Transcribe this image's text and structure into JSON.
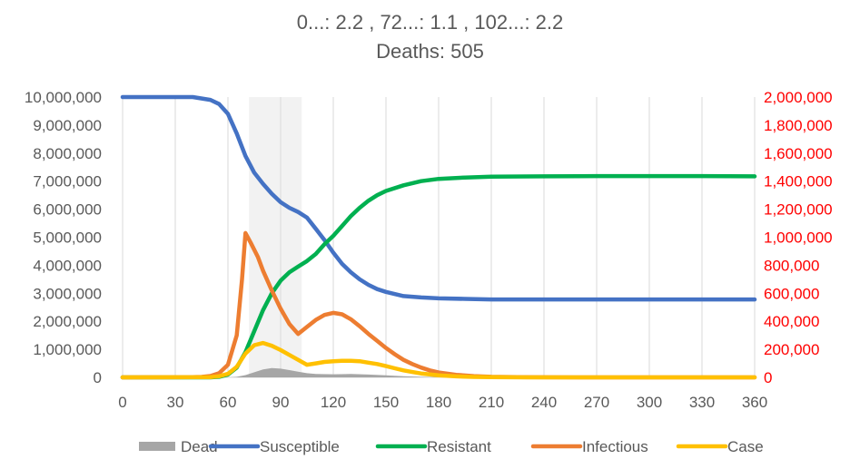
{
  "title_line1": "0...: 2.2 ,  72...: 1.1 ,  102...: 2.2",
  "title_line2": "Deaths: 505",
  "colors": {
    "dead": "#a6a6a6",
    "susceptible": "#4472c4",
    "resistant": "#00b050",
    "infectious": "#ed7d31",
    "case": "#ffc000",
    "right_axis": "#ff0000",
    "left_axis": "#595959",
    "grid": "#d9d9d9",
    "shade": "#f2f2f2"
  },
  "chart_data": {
    "type": "line",
    "x_ticks": [
      "0",
      "30",
      "60",
      "90",
      "120",
      "150",
      "180",
      "210",
      "240",
      "270",
      "300",
      "330",
      "360"
    ],
    "xlim": [
      0,
      360
    ],
    "y_left_ticks": [
      "0",
      "1,000,000",
      "2,000,000",
      "3,000,000",
      "4,000,000",
      "5,000,000",
      "6,000,000",
      "7,000,000",
      "8,000,000",
      "9,000,000",
      "10,000,000"
    ],
    "ylim_left": [
      0,
      10000000
    ],
    "y_right_ticks": [
      "0",
      "200,000",
      "400,000",
      "600,000",
      "800,000",
      "1,000,000",
      "1,200,000",
      "1,400,000",
      "1,600,000",
      "1,800,000",
      "2,000,000"
    ],
    "ylim_right": [
      0,
      2000000
    ],
    "shaded_interval": [
      72,
      102
    ],
    "legend_position": "bottom",
    "series": [
      {
        "name": "Dead",
        "kind": "area",
        "axis": "left",
        "color_key": "dead",
        "points": [
          [
            0,
            0
          ],
          [
            60,
            0
          ],
          [
            65,
            20000
          ],
          [
            70,
            80000
          ],
          [
            75,
            180000
          ],
          [
            80,
            280000
          ],
          [
            85,
            330000
          ],
          [
            90,
            310000
          ],
          [
            95,
            260000
          ],
          [
            100,
            200000
          ],
          [
            105,
            150000
          ],
          [
            110,
            120000
          ],
          [
            120,
            110000
          ],
          [
            130,
            120000
          ],
          [
            140,
            100000
          ],
          [
            150,
            70000
          ],
          [
            160,
            40000
          ],
          [
            170,
            20000
          ],
          [
            180,
            8000
          ],
          [
            190,
            3000
          ],
          [
            200,
            0
          ],
          [
            360,
            0
          ]
        ]
      },
      {
        "name": "Susceptible",
        "kind": "line",
        "axis": "left",
        "color_key": "susceptible",
        "points": [
          [
            0,
            10000000
          ],
          [
            40,
            10000000
          ],
          [
            50,
            9900000
          ],
          [
            55,
            9750000
          ],
          [
            60,
            9400000
          ],
          [
            65,
            8700000
          ],
          [
            70,
            7900000
          ],
          [
            75,
            7300000
          ],
          [
            80,
            6900000
          ],
          [
            85,
            6550000
          ],
          [
            90,
            6250000
          ],
          [
            95,
            6050000
          ],
          [
            100,
            5900000
          ],
          [
            105,
            5700000
          ],
          [
            110,
            5300000
          ],
          [
            115,
            4900000
          ],
          [
            120,
            4450000
          ],
          [
            125,
            4050000
          ],
          [
            130,
            3750000
          ],
          [
            135,
            3500000
          ],
          [
            140,
            3300000
          ],
          [
            145,
            3150000
          ],
          [
            150,
            3050000
          ],
          [
            160,
            2900000
          ],
          [
            170,
            2850000
          ],
          [
            180,
            2820000
          ],
          [
            195,
            2800000
          ],
          [
            210,
            2780000
          ],
          [
            360,
            2780000
          ]
        ]
      },
      {
        "name": "Resistant",
        "kind": "line",
        "axis": "left",
        "color_key": "resistant",
        "points": [
          [
            0,
            0
          ],
          [
            50,
            0
          ],
          [
            55,
            20000
          ],
          [
            60,
            100000
          ],
          [
            65,
            350000
          ],
          [
            70,
            900000
          ],
          [
            75,
            1650000
          ],
          [
            80,
            2400000
          ],
          [
            85,
            3000000
          ],
          [
            90,
            3450000
          ],
          [
            95,
            3750000
          ],
          [
            100,
            3950000
          ],
          [
            105,
            4150000
          ],
          [
            110,
            4400000
          ],
          [
            115,
            4750000
          ],
          [
            120,
            5050000
          ],
          [
            125,
            5400000
          ],
          [
            130,
            5750000
          ],
          [
            135,
            6050000
          ],
          [
            140,
            6300000
          ],
          [
            145,
            6500000
          ],
          [
            150,
            6650000
          ],
          [
            160,
            6850000
          ],
          [
            170,
            7000000
          ],
          [
            180,
            7080000
          ],
          [
            195,
            7130000
          ],
          [
            210,
            7160000
          ],
          [
            240,
            7170000
          ],
          [
            270,
            7180000
          ],
          [
            300,
            7180000
          ],
          [
            330,
            7180000
          ],
          [
            360,
            7170000
          ]
        ]
      },
      {
        "name": "Infectious",
        "kind": "line",
        "axis": "right",
        "color_key": "infectious",
        "points": [
          [
            0,
            0
          ],
          [
            40,
            1000
          ],
          [
            45,
            3000
          ],
          [
            50,
            10000
          ],
          [
            55,
            30000
          ],
          [
            60,
            90000
          ],
          [
            65,
            300000
          ],
          [
            68,
            700000
          ],
          [
            70,
            1030000
          ],
          [
            73,
            960000
          ],
          [
            77,
            860000
          ],
          [
            80,
            760000
          ],
          [
            85,
            620000
          ],
          [
            90,
            490000
          ],
          [
            95,
            380000
          ],
          [
            100,
            310000
          ],
          [
            105,
            360000
          ],
          [
            110,
            410000
          ],
          [
            115,
            445000
          ],
          [
            120,
            460000
          ],
          [
            125,
            450000
          ],
          [
            130,
            415000
          ],
          [
            135,
            365000
          ],
          [
            140,
            310000
          ],
          [
            145,
            260000
          ],
          [
            150,
            210000
          ],
          [
            155,
            165000
          ],
          [
            160,
            125000
          ],
          [
            165,
            95000
          ],
          [
            170,
            70000
          ],
          [
            175,
            50000
          ],
          [
            180,
            35000
          ],
          [
            190,
            18000
          ],
          [
            200,
            9000
          ],
          [
            210,
            4000
          ],
          [
            225,
            1500
          ],
          [
            240,
            500
          ],
          [
            260,
            0
          ],
          [
            360,
            0
          ]
        ]
      },
      {
        "name": "Case",
        "kind": "line",
        "axis": "right",
        "color_key": "case",
        "points": [
          [
            0,
            0
          ],
          [
            50,
            2000
          ],
          [
            55,
            8000
          ],
          [
            60,
            25000
          ],
          [
            65,
            75000
          ],
          [
            70,
            170000
          ],
          [
            75,
            230000
          ],
          [
            80,
            245000
          ],
          [
            85,
            225000
          ],
          [
            90,
            195000
          ],
          [
            95,
            160000
          ],
          [
            100,
            125000
          ],
          [
            105,
            90000
          ],
          [
            110,
            100000
          ],
          [
            115,
            110000
          ],
          [
            120,
            115000
          ],
          [
            125,
            118000
          ],
          [
            130,
            118000
          ],
          [
            135,
            115000
          ],
          [
            140,
            105000
          ],
          [
            145,
            95000
          ],
          [
            150,
            80000
          ],
          [
            155,
            65000
          ],
          [
            160,
            50000
          ],
          [
            165,
            38000
          ],
          [
            170,
            28000
          ],
          [
            180,
            15000
          ],
          [
            190,
            7000
          ],
          [
            200,
            3000
          ],
          [
            210,
            1000
          ],
          [
            230,
            0
          ],
          [
            360,
            0
          ]
        ]
      }
    ]
  }
}
